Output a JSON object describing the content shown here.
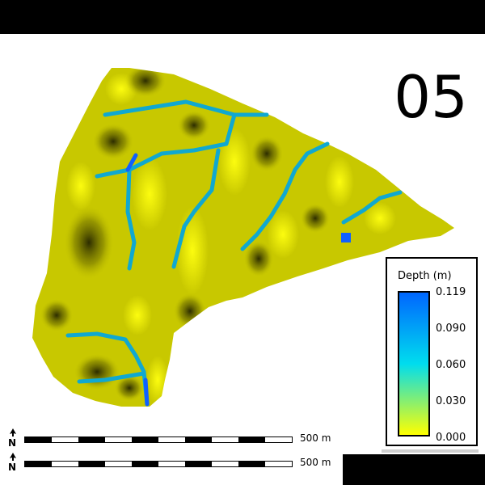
{
  "frame_label": "05",
  "legend": {
    "title": "Depth (m)",
    "ticks": [
      "0.119",
      "0.090",
      "0.060",
      "0.030",
      "0.000"
    ],
    "colors": [
      "#0066ff",
      "#00ddee",
      "#ffff00"
    ]
  },
  "scalebars": [
    {
      "label": "500 m"
    },
    {
      "label": "500 m"
    }
  ],
  "map_colors": {
    "terrain_light": "#f5f500",
    "terrain_mid": "#b8b800",
    "terrain_dark": "#3a3a00",
    "channel": "#10a8d0",
    "pool": "#1060ff"
  }
}
